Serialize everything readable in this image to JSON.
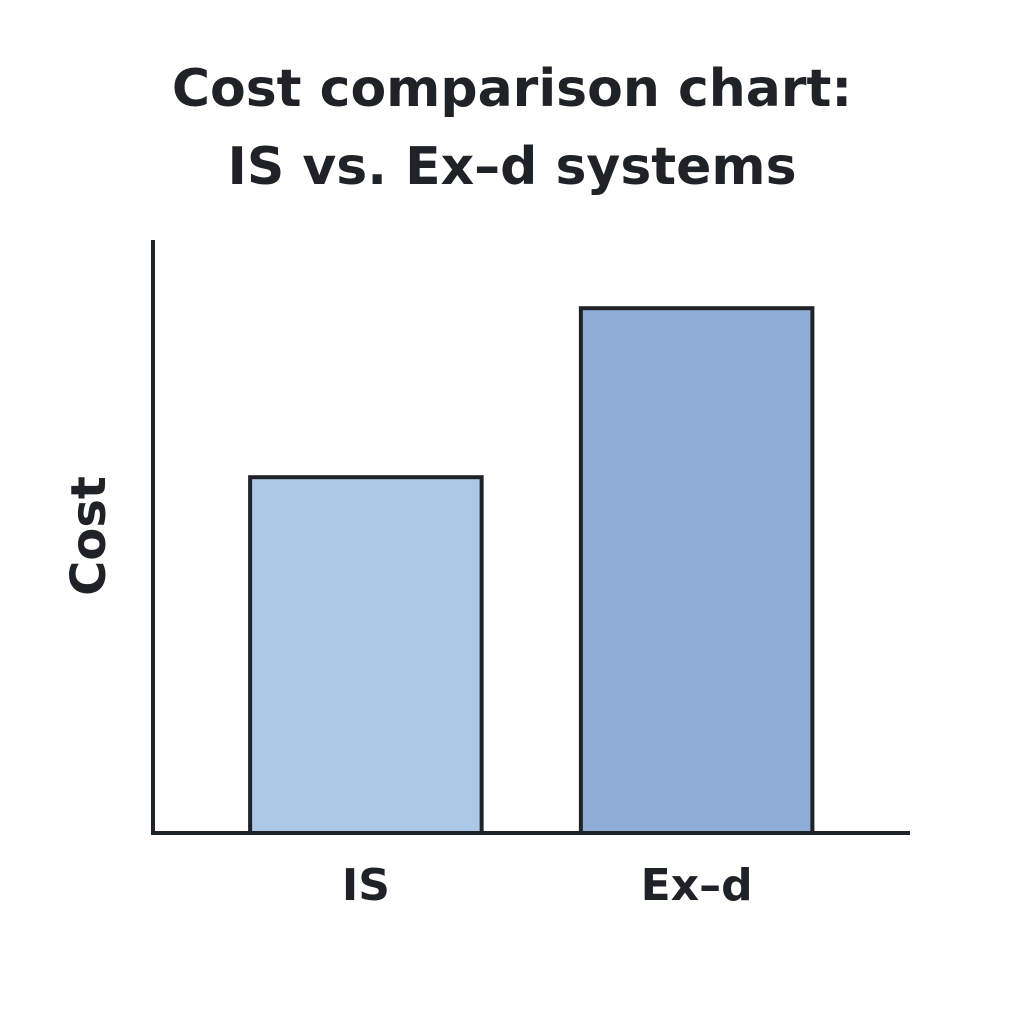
{
  "chart_data": {
    "type": "bar",
    "title": [
      "Cost comparison chart:",
      "IS vs. Ex–d systems"
    ],
    "y_label": "Cost",
    "categories": [
      "IS",
      "Ex–d"
    ],
    "values": [
      60,
      88.5
    ],
    "colors": [
      "#adc8e6",
      "#8fadd4"
    ],
    "ylim": [
      0,
      100
    ],
    "grid": false
  }
}
